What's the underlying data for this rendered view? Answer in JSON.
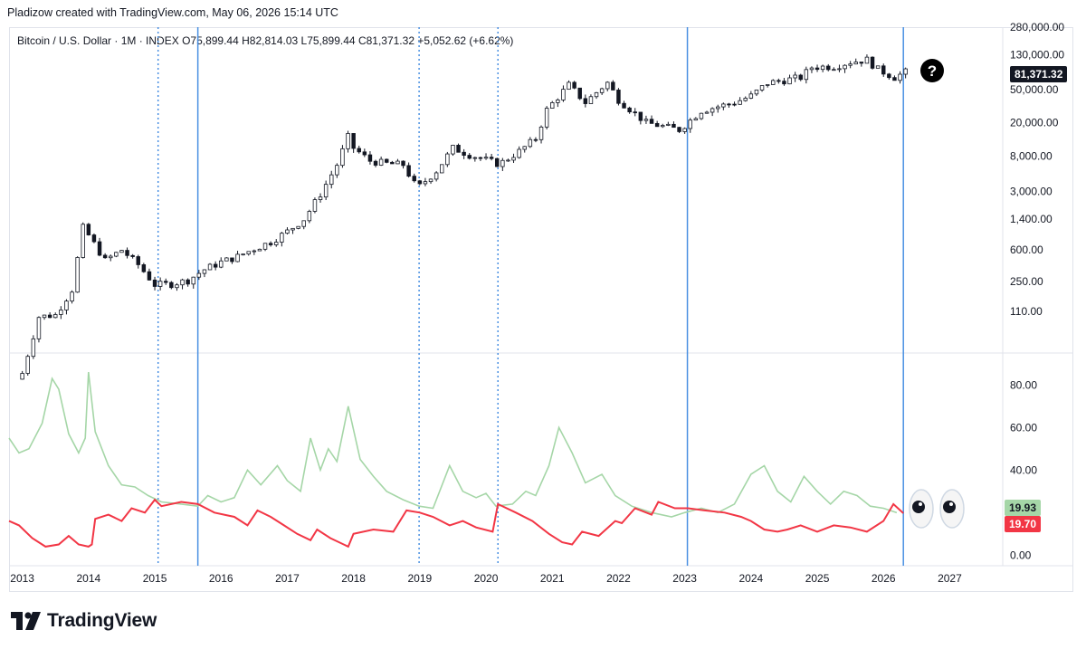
{
  "header": {
    "credit": "Pladizow created with TradingView.com, May 06, 2026 15:14 UTC"
  },
  "legend": {
    "symbol": "Bitcoin / U.S. Dollar · 1M · INDEX",
    "open": "O75,899.44",
    "high": "H82,814.03",
    "low": "L75,899.44",
    "close": "C81,371.32",
    "change": "+5,052.62 (+6.62%)"
  },
  "price_tag": {
    "value": "81,371.32",
    "bg": "#131722"
  },
  "osc_tags": [
    {
      "value": "19.93",
      "bg": "#a5d6a7",
      "color": "#131722"
    },
    {
      "value": "19.70",
      "bg": "#f23645",
      "color": "#ffffff"
    }
  ],
  "annotations": {
    "question_icon": "question-circle-icon",
    "eyes_icon": "eyes-icon"
  },
  "logo": {
    "text": "TradingView",
    "icon": "tradingview-logo-icon"
  },
  "colors": {
    "candle_up_fill": "#ffffff",
    "candle_down_fill": "#131722",
    "wick": "#131722",
    "green_line": "#a5d6a7",
    "red_line": "#f23645",
    "vline": "#4a90e2"
  },
  "chart_data": [
    {
      "type": "candlestick",
      "title": "Bitcoin / U.S. Dollar · 1M · INDEX",
      "y_scale": "log",
      "ylim": [
        35,
        280000
      ],
      "y_ticks": [
        "280,000.00",
        "130,000.00",
        "50,000.00",
        "20,000.00",
        "8,000.00",
        "3,000.00",
        "1,400.00",
        "600.00",
        "250.00",
        "110.00"
      ],
      "y_tick_values": [
        280000,
        130000,
        50000,
        20000,
        8000,
        3000,
        1400,
        600,
        250,
        110
      ],
      "x_ticks": [
        "2013",
        "2014",
        "2015",
        "2016",
        "2017",
        "2018",
        "2019",
        "2020",
        "2021",
        "2022",
        "2023",
        "2024",
        "2025",
        "2026",
        "2027"
      ],
      "xlim": [
        2012.8,
        2027.8
      ],
      "x_unit": "year",
      "monthly_closes": [
        {
          "x": 2013.0,
          "close": 20
        },
        {
          "x": 2013.25,
          "close": 95
        },
        {
          "x": 2013.5,
          "close": 100
        },
        {
          "x": 2013.75,
          "close": 200
        },
        {
          "x": 2013.92,
          "close": 1150
        },
        {
          "x": 2014.0,
          "close": 900
        },
        {
          "x": 2014.25,
          "close": 450
        },
        {
          "x": 2014.5,
          "close": 600
        },
        {
          "x": 2014.75,
          "close": 400
        },
        {
          "x": 2015.0,
          "close": 230
        },
        {
          "x": 2015.25,
          "close": 235
        },
        {
          "x": 2015.5,
          "close": 260
        },
        {
          "x": 2015.75,
          "close": 350
        },
        {
          "x": 2016.0,
          "close": 430
        },
        {
          "x": 2016.25,
          "close": 500
        },
        {
          "x": 2016.5,
          "close": 620
        },
        {
          "x": 2016.75,
          "close": 750
        },
        {
          "x": 2017.0,
          "close": 1000
        },
        {
          "x": 2017.25,
          "close": 1400
        },
        {
          "x": 2017.5,
          "close": 2800
        },
        {
          "x": 2017.75,
          "close": 6300
        },
        {
          "x": 2017.92,
          "close": 13800
        },
        {
          "x": 2018.0,
          "close": 10000
        },
        {
          "x": 2018.25,
          "close": 7000
        },
        {
          "x": 2018.5,
          "close": 6500
        },
        {
          "x": 2018.75,
          "close": 6300
        },
        {
          "x": 2018.92,
          "close": 3700
        },
        {
          "x": 2019.0,
          "close": 3500
        },
        {
          "x": 2019.25,
          "close": 5300
        },
        {
          "x": 2019.5,
          "close": 10000
        },
        {
          "x": 2019.75,
          "close": 8300
        },
        {
          "x": 2020.0,
          "close": 7200
        },
        {
          "x": 2020.2,
          "close": 6400
        },
        {
          "x": 2020.5,
          "close": 9100
        },
        {
          "x": 2020.75,
          "close": 13000
        },
        {
          "x": 2020.92,
          "close": 29000
        },
        {
          "x": 2021.25,
          "close": 57000
        },
        {
          "x": 2021.5,
          "close": 35000
        },
        {
          "x": 2021.83,
          "close": 61000
        },
        {
          "x": 2022.0,
          "close": 38000
        },
        {
          "x": 2022.42,
          "close": 20000
        },
        {
          "x": 2022.92,
          "close": 16500
        },
        {
          "x": 2023.25,
          "close": 28000
        },
        {
          "x": 2023.75,
          "close": 35000
        },
        {
          "x": 2024.0,
          "close": 42000
        },
        {
          "x": 2024.25,
          "close": 60000
        },
        {
          "x": 2024.75,
          "close": 70000
        },
        {
          "x": 2024.92,
          "close": 93000
        },
        {
          "x": 2025.25,
          "close": 95000
        },
        {
          "x": 2025.5,
          "close": 107000
        },
        {
          "x": 2025.75,
          "close": 114000
        },
        {
          "x": 2025.92,
          "close": 87000
        },
        {
          "x": 2026.17,
          "close": 70000
        },
        {
          "x": 2026.33,
          "close": 81371.32
        }
      ],
      "vertical_markers": [
        {
          "x": 2015.05,
          "style": "dotted"
        },
        {
          "x": 2015.65,
          "style": "solid"
        },
        {
          "x": 2018.99,
          "style": "dotted"
        },
        {
          "x": 2020.18,
          "style": "dotted"
        },
        {
          "x": 2023.04,
          "style": "solid"
        },
        {
          "x": 2026.3,
          "style": "solid"
        }
      ]
    },
    {
      "type": "line",
      "ylim": [
        -5,
        95
      ],
      "y_ticks": [
        "80.00",
        "60.00",
        "40.00",
        "20.00",
        "0.00"
      ],
      "y_tick_values": [
        80,
        60,
        40,
        20,
        0
      ],
      "series": [
        {
          "color": "#a5d6a7",
          "points": [
            [
              2012.8,
              55
            ],
            [
              2012.95,
              48
            ],
            [
              2013.1,
              50
            ],
            [
              2013.3,
              62
            ],
            [
              2013.45,
              83
            ],
            [
              2013.55,
              78
            ],
            [
              2013.7,
              57
            ],
            [
              2013.85,
              48
            ],
            [
              2013.95,
              55
            ],
            [
              2014.0,
              86
            ],
            [
              2014.1,
              58
            ],
            [
              2014.3,
              42
            ],
            [
              2014.5,
              33
            ],
            [
              2014.7,
              32
            ],
            [
              2014.9,
              28
            ],
            [
              2015.1,
              25
            ],
            [
              2015.4,
              24
            ],
            [
              2015.65,
              23
            ],
            [
              2015.8,
              28
            ],
            [
              2016.0,
              25
            ],
            [
              2016.2,
              27
            ],
            [
              2016.4,
              40
            ],
            [
              2016.6,
              33
            ],
            [
              2016.85,
              42
            ],
            [
              2017.0,
              35
            ],
            [
              2017.2,
              30
            ],
            [
              2017.35,
              55
            ],
            [
              2017.5,
              40
            ],
            [
              2017.62,
              50
            ],
            [
              2017.75,
              44
            ],
            [
              2017.92,
              70
            ],
            [
              2018.1,
              45
            ],
            [
              2018.3,
              37
            ],
            [
              2018.5,
              30
            ],
            [
              2018.75,
              26
            ],
            [
              2018.99,
              23
            ],
            [
              2019.2,
              22
            ],
            [
              2019.45,
              42
            ],
            [
              2019.65,
              30
            ],
            [
              2019.85,
              27
            ],
            [
              2020.0,
              29
            ],
            [
              2020.15,
              23
            ],
            [
              2020.4,
              24
            ],
            [
              2020.6,
              30
            ],
            [
              2020.75,
              28
            ],
            [
              2020.95,
              42
            ],
            [
              2021.1,
              60
            ],
            [
              2021.3,
              48
            ],
            [
              2021.5,
              34
            ],
            [
              2021.75,
              38
            ],
            [
              2021.95,
              28
            ],
            [
              2022.2,
              23
            ],
            [
              2022.5,
              20
            ],
            [
              2022.8,
              18
            ],
            [
              2023.0,
              20
            ],
            [
              2023.25,
              22
            ],
            [
              2023.5,
              20
            ],
            [
              2023.75,
              24
            ],
            [
              2024.0,
              38
            ],
            [
              2024.2,
              42
            ],
            [
              2024.4,
              30
            ],
            [
              2024.6,
              25
            ],
            [
              2024.8,
              37
            ],
            [
              2025.0,
              30
            ],
            [
              2025.2,
              24
            ],
            [
              2025.4,
              30
            ],
            [
              2025.6,
              28
            ],
            [
              2025.8,
              23
            ],
            [
              2026.0,
              22
            ],
            [
              2026.2,
              19.93
            ]
          ]
        },
        {
          "color": "#f23645",
          "points": [
            [
              2012.8,
              16
            ],
            [
              2012.95,
              14
            ],
            [
              2013.15,
              8
            ],
            [
              2013.35,
              4
            ],
            [
              2013.55,
              5
            ],
            [
              2013.7,
              9
            ],
            [
              2013.85,
              5
            ],
            [
              2014.0,
              4
            ],
            [
              2014.05,
              5
            ],
            [
              2014.1,
              17
            ],
            [
              2014.3,
              19
            ],
            [
              2014.5,
              16
            ],
            [
              2014.65,
              22
            ],
            [
              2014.85,
              20
            ],
            [
              2015.0,
              26
            ],
            [
              2015.1,
              23
            ],
            [
              2015.4,
              25
            ],
            [
              2015.65,
              24
            ],
            [
              2015.9,
              20
            ],
            [
              2016.2,
              18
            ],
            [
              2016.4,
              14
            ],
            [
              2016.55,
              21
            ],
            [
              2016.75,
              18
            ],
            [
              2016.95,
              14
            ],
            [
              2017.15,
              10
            ],
            [
              2017.35,
              7
            ],
            [
              2017.45,
              12
            ],
            [
              2017.65,
              8
            ],
            [
              2017.92,
              4
            ],
            [
              2018.0,
              10
            ],
            [
              2018.3,
              12
            ],
            [
              2018.6,
              11
            ],
            [
              2018.8,
              21
            ],
            [
              2019.0,
              20
            ],
            [
              2019.2,
              18
            ],
            [
              2019.45,
              14
            ],
            [
              2019.65,
              16
            ],
            [
              2019.85,
              13
            ],
            [
              2020.1,
              11
            ],
            [
              2020.18,
              24
            ],
            [
              2020.45,
              20
            ],
            [
              2020.7,
              16
            ],
            [
              2020.95,
              10
            ],
            [
              2021.15,
              6
            ],
            [
              2021.3,
              5
            ],
            [
              2021.45,
              11
            ],
            [
              2021.7,
              9
            ],
            [
              2021.95,
              16
            ],
            [
              2022.05,
              15
            ],
            [
              2022.25,
              22
            ],
            [
              2022.5,
              19
            ],
            [
              2022.6,
              25
            ],
            [
              2022.85,
              22
            ],
            [
              2023.05,
              22
            ],
            [
              2023.3,
              21
            ],
            [
              2023.6,
              20
            ],
            [
              2023.85,
              18
            ],
            [
              2024.0,
              16
            ],
            [
              2024.2,
              12
            ],
            [
              2024.4,
              11
            ],
            [
              2024.55,
              12
            ],
            [
              2024.75,
              14
            ],
            [
              2025.0,
              11
            ],
            [
              2025.25,
              14
            ],
            [
              2025.5,
              13
            ],
            [
              2025.75,
              11
            ],
            [
              2026.0,
              16
            ],
            [
              2026.15,
              24
            ],
            [
              2026.3,
              19.7
            ]
          ]
        }
      ]
    }
  ]
}
